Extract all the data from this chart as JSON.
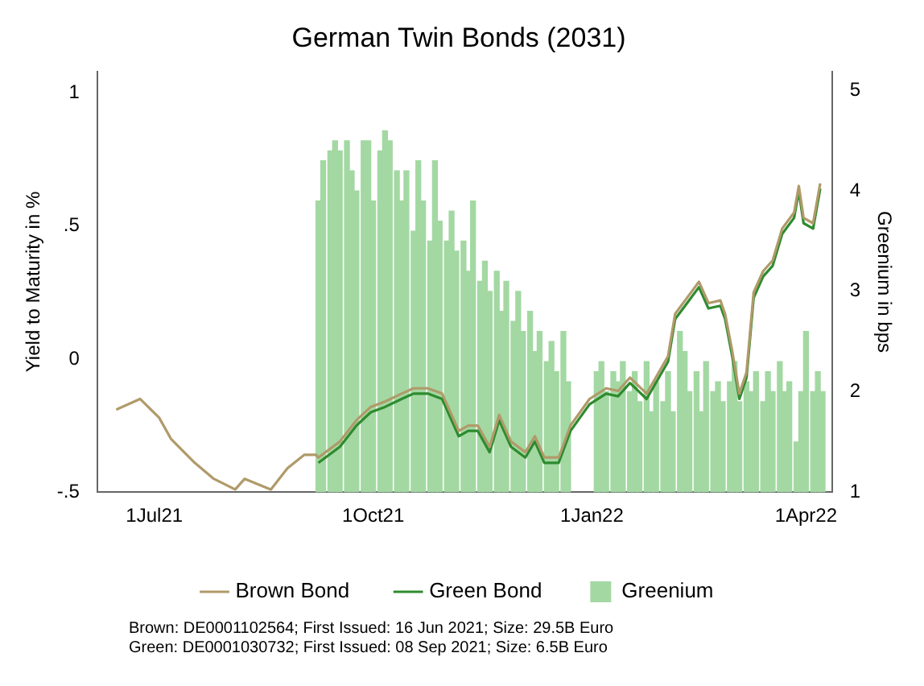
{
  "chart_data": {
    "type": "line",
    "title": "German Twin Bonds (2031)",
    "ylabel": "Yield to Maturity in %",
    "y2label": "Greenium in bps",
    "xlim": [
      "2021-06-07",
      "2022-04-12"
    ],
    "xticks": [
      {
        "value": "2021-07-01",
        "label": "1Jul21"
      },
      {
        "value": "2021-10-01",
        "label": "1Oct21"
      },
      {
        "value": "2022-01-01",
        "label": "1Jan22"
      },
      {
        "value": "2022-04-01",
        "label": "1Apr22"
      }
    ],
    "ylim": [
      -0.5,
      1.08
    ],
    "yticks": [
      {
        "value": -0.5,
        "label": "-.5"
      },
      {
        "value": 0,
        "label": "0"
      },
      {
        "value": 0.5,
        "label": ".5"
      },
      {
        "value": 1,
        "label": "1"
      }
    ],
    "y2lim": [
      1,
      5.19
    ],
    "y2ticks": [
      1,
      2,
      3,
      4,
      5
    ],
    "grid": false,
    "legend": "bottom",
    "series": [
      {
        "name": "Greenium",
        "type": "bar",
        "axis": "y2",
        "color": "#a3d8a3",
        "x": [
          "2021-09-08",
          "2021-09-10",
          "2021-09-13",
          "2021-09-15",
          "2021-09-17",
          "2021-09-20",
          "2021-09-22",
          "2021-09-24",
          "2021-09-27",
          "2021-09-29",
          "2021-10-01",
          "2021-10-04",
          "2021-10-06",
          "2021-10-08",
          "2021-10-11",
          "2021-10-13",
          "2021-10-15",
          "2021-10-18",
          "2021-10-20",
          "2021-10-22",
          "2021-10-25",
          "2021-10-27",
          "2021-10-29",
          "2021-11-01",
          "2021-11-03",
          "2021-11-05",
          "2021-11-08",
          "2021-11-10",
          "2021-11-12",
          "2021-11-15",
          "2021-11-17",
          "2021-11-19",
          "2021-11-22",
          "2021-11-24",
          "2021-11-26",
          "2021-11-29",
          "2021-12-01",
          "2021-12-03",
          "2021-12-06",
          "2021-12-08",
          "2021-12-10",
          "2021-12-13",
          "2021-12-15",
          "2021-12-17",
          "2021-12-20",
          "2021-12-22",
          "2022-01-03",
          "2022-01-05",
          "2022-01-07",
          "2022-01-10",
          "2022-01-12",
          "2022-01-14",
          "2022-01-17",
          "2022-01-19",
          "2022-01-21",
          "2022-01-24",
          "2022-01-26",
          "2022-01-28",
          "2022-01-31",
          "2022-02-02",
          "2022-02-04",
          "2022-02-07",
          "2022-02-09",
          "2022-02-11",
          "2022-02-14",
          "2022-02-16",
          "2022-02-18",
          "2022-02-21",
          "2022-02-23",
          "2022-02-25",
          "2022-02-28",
          "2022-03-02",
          "2022-03-04",
          "2022-03-07",
          "2022-03-09",
          "2022-03-11",
          "2022-03-14",
          "2022-03-16",
          "2022-03-18",
          "2022-03-21",
          "2022-03-23",
          "2022-03-25",
          "2022-03-28",
          "2022-03-30",
          "2022-04-01",
          "2022-04-04",
          "2022-04-06",
          "2022-04-08"
        ],
        "values": [
          3.9,
          4.3,
          4.4,
          4.5,
          4.4,
          4.5,
          4.2,
          4.0,
          4.5,
          4.5,
          3.9,
          4.4,
          4.6,
          4.5,
          4.2,
          3.9,
          4.2,
          3.6,
          4.3,
          3.9,
          3.5,
          4.3,
          3.7,
          3.5,
          3.8,
          3.4,
          3.5,
          3.2,
          3.9,
          3.1,
          3.3,
          3.0,
          3.2,
          2.8,
          3.1,
          2.7,
          3.0,
          2.6,
          2.8,
          2.4,
          2.6,
          2.3,
          2.5,
          2.2,
          2.6,
          2.1,
          2.2,
          2.3,
          2.0,
          2.2,
          2.1,
          2.3,
          2.0,
          2.2,
          1.9,
          2.3,
          1.8,
          2.1,
          1.9,
          2.2,
          1.8,
          2.6,
          2.4,
          2.0,
          2.2,
          1.8,
          2.3,
          2.0,
          2.1,
          1.9,
          2.1,
          2.3,
          1.9,
          2.1,
          2.0,
          2.2,
          1.9,
          2.2,
          2.0,
          2.3,
          2.0,
          2.1,
          1.5,
          2.0,
          2.6,
          2.0,
          2.2,
          2.0
        ]
      },
      {
        "name": "Brown Bond",
        "color": "#b09a6a",
        "x": [
          "2021-06-15",
          "2021-06-25",
          "2021-07-03",
          "2021-07-08",
          "2021-07-18",
          "2021-07-26",
          "2021-08-04",
          "2021-08-08",
          "2021-08-19",
          "2021-08-26",
          "2021-09-02",
          "2021-09-07",
          "2021-09-08",
          "2021-09-17",
          "2021-09-24",
          "2021-09-30",
          "2021-10-06",
          "2021-10-13",
          "2021-10-18",
          "2021-10-24",
          "2021-10-30",
          "2021-11-06",
          "2021-11-10",
          "2021-11-14",
          "2021-11-19",
          "2021-11-23",
          "2021-11-28",
          "2021-12-04",
          "2021-12-08",
          "2021-12-12",
          "2021-12-18",
          "2021-12-23",
          "2021-12-31",
          "2022-01-07",
          "2022-01-12",
          "2022-01-17",
          "2022-01-24",
          "2022-02-02",
          "2022-02-05",
          "2022-02-10",
          "2022-02-15",
          "2022-02-19",
          "2022-02-24",
          "2022-02-26",
          "2022-03-01",
          "2022-03-04",
          "2022-03-07",
          "2022-03-10",
          "2022-03-14",
          "2022-03-18",
          "2022-03-22",
          "2022-03-27",
          "2022-03-29",
          "2022-03-31",
          "2022-04-04",
          "2022-04-07"
        ],
        "values": [
          -0.19,
          -0.15,
          -0.22,
          -0.3,
          -0.39,
          -0.45,
          -0.49,
          -0.45,
          -0.49,
          -0.41,
          -0.36,
          -0.36,
          -0.37,
          -0.31,
          -0.23,
          -0.18,
          -0.16,
          -0.13,
          -0.11,
          -0.11,
          -0.13,
          -0.27,
          -0.25,
          -0.25,
          -0.33,
          -0.21,
          -0.31,
          -0.35,
          -0.29,
          -0.37,
          -0.37,
          -0.25,
          -0.15,
          -0.11,
          -0.12,
          -0.07,
          -0.13,
          0.01,
          0.17,
          0.23,
          0.29,
          0.21,
          0.22,
          0.17,
          0.03,
          -0.13,
          -0.05,
          0.25,
          0.33,
          0.37,
          0.49,
          0.55,
          0.65,
          0.53,
          0.51,
          0.66
        ]
      },
      {
        "name": "Green Bond",
        "color": "#2e8b2e",
        "x": [
          "2021-09-08",
          "2021-09-17",
          "2021-09-24",
          "2021-09-30",
          "2021-10-06",
          "2021-10-13",
          "2021-10-18",
          "2021-10-24",
          "2021-10-30",
          "2021-11-06",
          "2021-11-10",
          "2021-11-14",
          "2021-11-19",
          "2021-11-23",
          "2021-11-28",
          "2021-12-04",
          "2021-12-08",
          "2021-12-12",
          "2021-12-18",
          "2021-12-23",
          "2021-12-31",
          "2022-01-07",
          "2022-01-12",
          "2022-01-17",
          "2022-01-24",
          "2022-02-02",
          "2022-02-05",
          "2022-02-10",
          "2022-02-15",
          "2022-02-19",
          "2022-02-24",
          "2022-02-26",
          "2022-03-01",
          "2022-03-04",
          "2022-03-07",
          "2022-03-10",
          "2022-03-14",
          "2022-03-18",
          "2022-03-22",
          "2022-03-27",
          "2022-03-29",
          "2022-03-31",
          "2022-04-04",
          "2022-04-07"
        ],
        "values": [
          -0.39,
          -0.33,
          -0.25,
          -0.2,
          -0.18,
          -0.15,
          -0.13,
          -0.13,
          -0.15,
          -0.29,
          -0.27,
          -0.27,
          -0.35,
          -0.23,
          -0.33,
          -0.37,
          -0.31,
          -0.39,
          -0.39,
          -0.27,
          -0.17,
          -0.13,
          -0.14,
          -0.09,
          -0.15,
          -0.01,
          0.15,
          0.21,
          0.27,
          0.19,
          0.2,
          0.15,
          0.01,
          -0.15,
          -0.07,
          0.23,
          0.31,
          0.35,
          0.47,
          0.53,
          0.63,
          0.51,
          0.49,
          0.64
        ]
      }
    ],
    "annotations": [
      "Brown: DE0001102564; First Issued: 16 Jun 2021; Size: 29.5B Euro",
      "Green: DE0001030732; First Issued: 08 Sep 2021; Size: 6.5B Euro"
    ]
  }
}
